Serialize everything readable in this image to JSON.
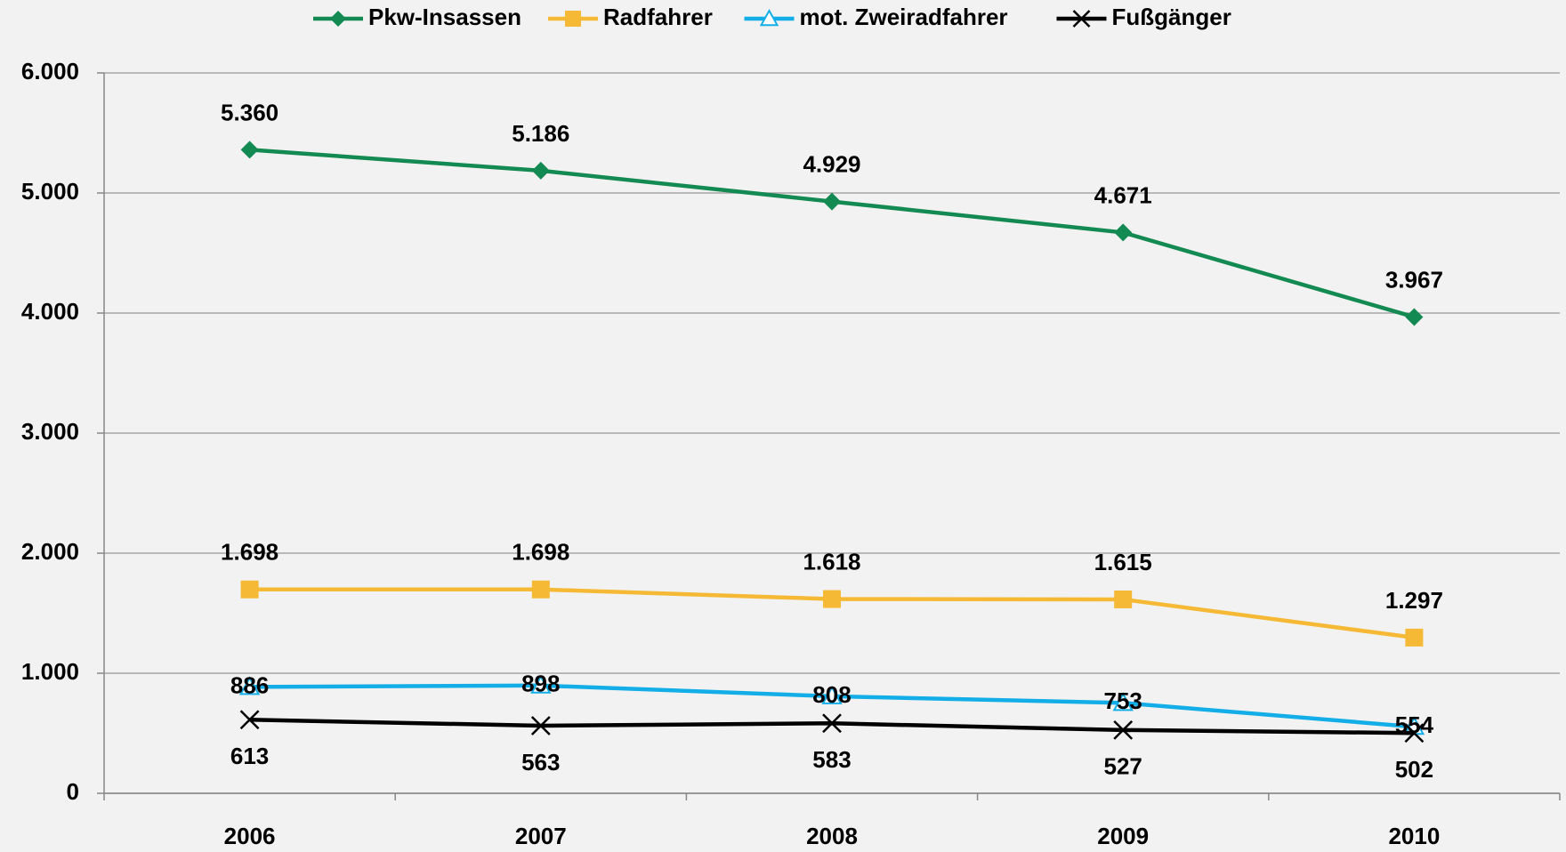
{
  "chart_data": {
    "type": "line",
    "categories": [
      "2006",
      "2007",
      "2008",
      "2009",
      "2010"
    ],
    "series": [
      {
        "name": "Pkw-Insassen",
        "color": "#138a52",
        "marker": "diamond",
        "values": [
          5360,
          5186,
          4929,
          4671,
          3967
        ],
        "value_labels": [
          "5.360",
          "5.186",
          "4.929",
          "4.671",
          "3.967"
        ]
      },
      {
        "name": "Radfahrer",
        "color": "#f5b935",
        "marker": "square",
        "values": [
          1698,
          1698,
          1618,
          1615,
          1297
        ],
        "value_labels": [
          "1.698",
          "1.698",
          "1.618",
          "1.615",
          "1.297"
        ]
      },
      {
        "name": "mot. Zweiradfahrer",
        "color": "#13aee8",
        "marker": "triangle",
        "values": [
          886,
          898,
          808,
          753,
          554
        ]
      },
      {
        "name": "Fußgänger",
        "color": "#000000",
        "marker": "x",
        "values": [
          613,
          563,
          583,
          527,
          502
        ]
      }
    ],
    "ylim": [
      0,
      6000
    ],
    "yticks": [
      0,
      {
        "value": 1000,
        "label": "1.000"
      },
      {
        "value": 2000,
        "label": "2.000"
      },
      {
        "value": 3000,
        "label": "3.000"
      },
      {
        "value": 4000,
        "label": "4.000"
      },
      {
        "value": 5000,
        "label": "5.000"
      },
      {
        "value": 6000,
        "label": "6.000"
      }
    ],
    "grid": true,
    "legend": "top"
  }
}
